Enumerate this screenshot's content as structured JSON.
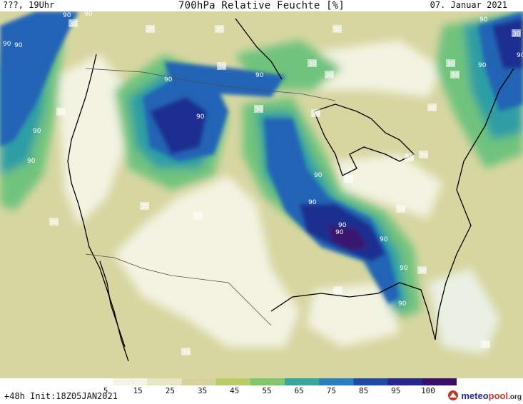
{
  "header": {
    "run_label": "???, 19Uhr",
    "title": "700hPa Relative Feuchte [%]",
    "date": "07. Januar 2021"
  },
  "footer": {
    "init_label": "+48h Init:18Z05JAN2021",
    "logo": {
      "brand_main": "meteo",
      "brand_accent": "pool",
      "suffix": ".org",
      "icon": "meteopool-logo-icon"
    }
  },
  "colorbar": {
    "tick_labels": [
      "5",
      "15",
      "25",
      "35",
      "45",
      "55",
      "65",
      "75",
      "85",
      "95",
      "100"
    ],
    "colors": [
      "#ffffff",
      "#f3f3e6",
      "#e6e6c7",
      "#d3d39b",
      "#b8cc6a",
      "#80c66e",
      "#3aa6a0",
      "#2a7fc0",
      "#1f4aa8",
      "#25278a",
      "#3a0f6a"
    ]
  },
  "contour_labels": [
    "90",
    "30"
  ],
  "colors": {
    "land_dry": "#f3f3e2",
    "land_tan": "#d7d6a1",
    "sea_light": "#eaf1e4",
    "moist_green": "#6fc37d",
    "moist_teal": "#2f9da5",
    "moist_blue": "#2063b5",
    "moist_dark": "#1f2d8f",
    "moist_purple": "#3b176f",
    "coastline": "#000000",
    "border": "#4d4d4d"
  }
}
